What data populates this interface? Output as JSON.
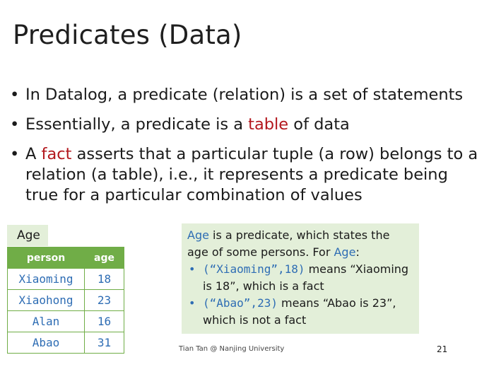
{
  "title": "Predicates (Data)",
  "bullets": {
    "b1": "In Datalog, a predicate (relation) is a set of statements",
    "b2_pre": "Essentially, a predicate is a ",
    "b2_hl": "table",
    "b2_post": " of data",
    "b3_pre": "A ",
    "b3_hl": "fact",
    "b3_post": " asserts that a particular tuple (a row) belongs to a relation (a table), i.e., it represents a predicate being true for a particular combination of values",
    "bullet_glyph": "•"
  },
  "age_table": {
    "label": "Age",
    "headers": {
      "person": "person",
      "age": "age"
    },
    "rows": [
      {
        "person": "Xiaoming",
        "age": "18"
      },
      {
        "person": "Xiaohong",
        "age": "23"
      },
      {
        "person": "Alan",
        "age": "16"
      },
      {
        "person": "Abao",
        "age": "31"
      }
    ]
  },
  "info": {
    "line1_pred": "Age",
    "line1_rest": " is a predicate, which states the age of some persons. For ",
    "line1_pred2": "Age",
    "line1_colon": ":",
    "item1_code": "(“Xiaoming”,18)",
    "item1_text": " means “Xiaoming is 18”, which is a fact",
    "item2_code": "(“Abao”,23)",
    "item2_text": " means “Abao is 23”, which is not a fact",
    "bullet_glyph": "•"
  },
  "footer": {
    "credit": "Tian Tan @ Nanjing University",
    "page": "21"
  },
  "colors": {
    "red_highlight": "#b3171d",
    "blue_code": "#2e6db4",
    "green_header": "#70ad47",
    "light_green": "#e3efd9"
  }
}
